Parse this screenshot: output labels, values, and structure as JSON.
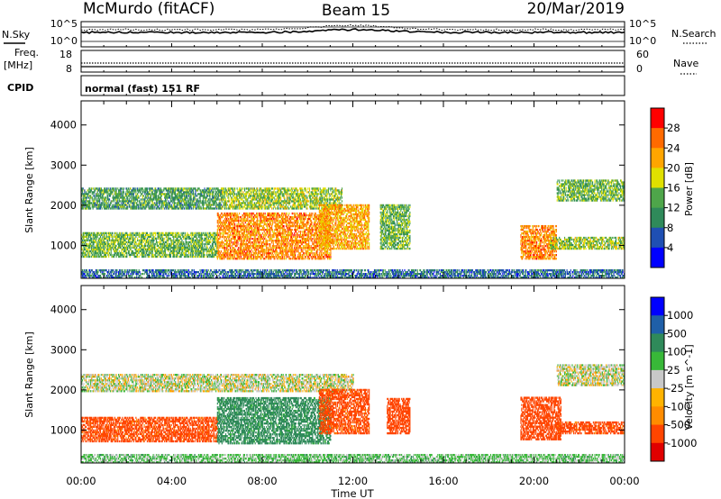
{
  "header": {
    "station": "McMurdo (fitACF)",
    "beam": "Beam 15",
    "date": "20/Mar/2019"
  },
  "noise_panel": {
    "left_label": "N.Sky",
    "right_label": "N.Search",
    "left_ticks": [
      "10^5",
      "10^0"
    ],
    "right_ticks": [
      "10^5",
      "10^0"
    ]
  },
  "freq_panel": {
    "left_label_line1": "Freq.",
    "left_label_line2": "[MHz]",
    "right_label": "Nave",
    "left_ticks": [
      "18",
      "8"
    ],
    "right_ticks": [
      "60",
      "0"
    ]
  },
  "cpid": {
    "label": "CPID",
    "text": "normal (fast) 151 RF"
  },
  "colors": {
    "power": [
      "#0000ff",
      "#1f4fb3",
      "#2f8a5a",
      "#4ea64a",
      "#e0e000",
      "#ffa500",
      "#ff6a00",
      "#ff0000"
    ],
    "velocity": [
      "#e00000",
      "#ff4500",
      "#ff8c00",
      "#ffb300",
      "#c8c8c8",
      "#38b838",
      "#2f8a5a",
      "#1f5fa8",
      "#0000ff"
    ]
  },
  "chart_data": [
    {
      "type": "heatmap",
      "title": "",
      "xlabel": "Time UT",
      "ylabel": "Slant Range [km]",
      "colorbar_label": "Power [dB]",
      "colorbar_ticks": [
        "4",
        "8",
        "12",
        "16",
        "20",
        "24",
        "28"
      ],
      "clim": [
        0,
        32
      ],
      "xlim": [
        0,
        24
      ],
      "ylim": [
        180,
        4600
      ],
      "yticks": [
        "1000",
        "2000",
        "3000",
        "4000"
      ],
      "regions": [
        {
          "t0": 0.0,
          "t1": 6.2,
          "r0": 1900,
          "r1": 2400,
          "value": 12
        },
        {
          "t0": 6.2,
          "t1": 11.5,
          "r0": 1900,
          "r1": 2400,
          "value": 16
        },
        {
          "t0": 0.0,
          "t1": 6.0,
          "r0": 700,
          "r1": 1300,
          "value": 14
        },
        {
          "t0": 6.0,
          "t1": 11.0,
          "r0": 650,
          "r1": 1800,
          "value": 24
        },
        {
          "t0": 10.5,
          "t1": 12.7,
          "r0": 900,
          "r1": 2000,
          "value": 22
        },
        {
          "t0": 13.2,
          "t1": 14.5,
          "r0": 900,
          "r1": 2000,
          "value": 14
        },
        {
          "t0": 19.4,
          "t1": 21.0,
          "r0": 650,
          "r1": 1500,
          "value": 24
        },
        {
          "t0": 20.7,
          "t1": 24.0,
          "r0": 900,
          "r1": 1200,
          "value": 16
        },
        {
          "t0": 21.0,
          "t1": 24.0,
          "r0": 2100,
          "r1": 2600,
          "value": 14
        },
        {
          "t0": 0.0,
          "t1": 24.0,
          "r0": 180,
          "r1": 400,
          "value": 8
        }
      ]
    },
    {
      "type": "heatmap",
      "title": "",
      "xlabel": "Time UT",
      "ylabel": "Slant Range [km]",
      "colorbar_label": "Velocity [m s^-1]",
      "colorbar_ticks": [
        "1000",
        "500",
        "100",
        "25",
        "-25",
        "-100",
        "-500",
        "-1000"
      ],
      "clim": [
        -1000,
        1000
      ],
      "xlim": [
        0,
        24
      ],
      "ylim": [
        180,
        4600
      ],
      "xticks": [
        "00:00",
        "04:00",
        "08:00",
        "12:00",
        "16:00",
        "20:00",
        "00:00"
      ],
      "yticks": [
        "1000",
        "2000",
        "3000",
        "4000"
      ],
      "regions": [
        {
          "t0": 0.0,
          "t1": 12.0,
          "r0": 1950,
          "r1": 2400,
          "value": 0
        },
        {
          "t0": 0.0,
          "t1": 6.0,
          "r0": 700,
          "r1": 1300,
          "value": -150
        },
        {
          "t0": 6.0,
          "t1": 11.0,
          "r0": 650,
          "r1": 1800,
          "value": 150
        },
        {
          "t0": 10.5,
          "t1": 12.7,
          "r0": 900,
          "r1": 2000,
          "value": -150
        },
        {
          "t0": 13.5,
          "t1": 14.5,
          "r0": 900,
          "r1": 1800,
          "value": -200
        },
        {
          "t0": 19.4,
          "t1": 21.2,
          "r0": 750,
          "r1": 1800,
          "value": -200
        },
        {
          "t0": 21.0,
          "t1": 24.0,
          "r0": 900,
          "r1": 1200,
          "value": -150
        },
        {
          "t0": 21.0,
          "t1": 24.0,
          "r0": 2100,
          "r1": 2600,
          "value": 0
        },
        {
          "t0": 0.0,
          "t1": 24.0,
          "r0": 180,
          "r1": 400,
          "value": 50
        }
      ]
    }
  ]
}
